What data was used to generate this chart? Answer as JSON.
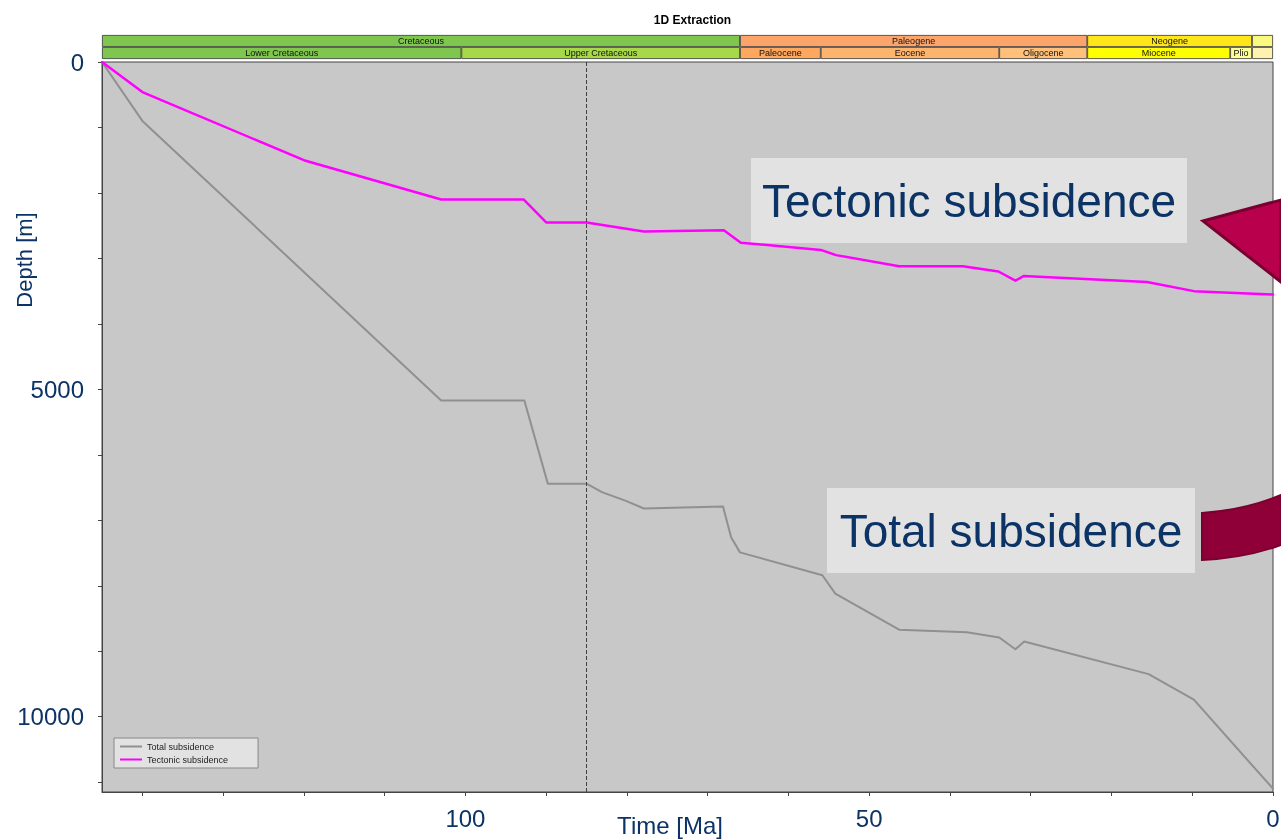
{
  "chart_data": [
    {
      "type": "bar",
      "title": "1D Extraction",
      "orientation": "horizontal",
      "stacked": true,
      "categories": [
        null,
        null
      ],
      "xlim": [
        145,
        0
      ],
      "tick_labels": false,
      "series": [
        {
          "values": [
            2.6,
            2.6
          ],
          "colors": [
            "#f9f97f",
            "#fff2ae"
          ],
          "value_labels": [
            null,
            null
          ]
        },
        {
          "values": [
            20.4,
            2.7
          ],
          "colors": [
            "#ffe619",
            "#ffff99"
          ],
          "value_labels": [
            "Neogene",
            "Plio"
          ]
        },
        {
          "values": [
            43,
            17.7
          ],
          "colors": [
            "#fda46b",
            "#ffff00"
          ],
          "value_labels": [
            "Paleogene",
            "Miocene"
          ]
        },
        {
          "values": [
            79,
            10.9
          ],
          "colors": [
            "#7fc64e",
            "#fec07a"
          ],
          "value_labels": [
            "Cretaceous",
            "Oligocene"
          ]
        },
        {
          "values": [
            null,
            22.1
          ],
          "colors": [
            null,
            "#fdb46c"
          ],
          "value_labels": [
            null,
            "Eocene"
          ]
        },
        {
          "values": [
            null,
            10
          ],
          "colors": [
            null,
            "#fda75f"
          ],
          "value_labels": [
            null,
            "Paleocene"
          ]
        },
        {
          "values": [
            null,
            34.5
          ],
          "colors": [
            null,
            "#a6d84a"
          ],
          "value_labels": [
            null,
            "Upper Cretaceous"
          ]
        },
        {
          "values": [
            null,
            44.5
          ],
          "colors": [
            null,
            "#7fc64e"
          ],
          "value_labels": [
            null,
            "Lower Cretaceous"
          ]
        }
      ]
    },
    {
      "type": "line",
      "xlabel": "Time [Ma]",
      "ylabel": "Depth [m]",
      "xlim": [
        145,
        0
      ],
      "ylim": [
        11150,
        0
      ],
      "xticks": [
        {
          "value": 140,
          "label": null
        },
        {
          "value": 130,
          "label": null
        },
        {
          "value": 120,
          "label": null
        },
        {
          "value": 110,
          "label": null
        },
        100,
        {
          "value": 90,
          "label": null
        },
        {
          "value": 80,
          "label": null
        },
        {
          "value": 70,
          "label": null
        },
        {
          "value": 60,
          "label": null
        },
        50,
        {
          "value": 40,
          "label": null
        },
        {
          "value": 30,
          "label": null
        },
        {
          "value": 20,
          "label": null
        },
        {
          "value": 10,
          "label": null
        },
        0
      ],
      "yticks": [
        0,
        {
          "value": 1000,
          "label": null
        },
        {
          "value": 2000,
          "label": null
        },
        {
          "value": 3000,
          "label": null
        },
        {
          "value": 4000,
          "label": null
        },
        5000,
        {
          "value": 6000,
          "label": null
        },
        {
          "value": 7000,
          "label": null
        },
        {
          "value": 8000,
          "label": null
        },
        {
          "value": 9000,
          "label": null
        },
        10000,
        {
          "value": 11000,
          "label": null
        }
      ],
      "legend": "bottom left",
      "marker": "none",
      "line_style": "solid",
      "series": [
        {
          "name": "Total subsidence",
          "color": "#909090",
          "x": [
            145,
            140,
            103,
            92.7,
            89.8,
            85,
            83.1,
            80.2,
            77.9,
            68.1,
            67.1,
            66,
            55.8,
            54.2,
            46.3,
            37.9,
            33.9,
            31.9,
            30.8,
            15.4,
            9.8,
            0
          ],
          "values": [
            0,
            900,
            5170,
            5170,
            6440,
            6440,
            6570,
            6700,
            6820,
            6790,
            7260,
            7490,
            7840,
            8120,
            8670,
            8710,
            8790,
            8970,
            8850,
            9350,
            9740,
            11100
          ]
        },
        {
          "name": "Tectonic subsidence",
          "color": "#ff00ff",
          "x": [
            145,
            140,
            120,
            103,
            92.8,
            90,
            85,
            77.9,
            68,
            65.9,
            56,
            54.1,
            46.3,
            38.4,
            34,
            31.9,
            30.9,
            15.6,
            9.8,
            0
          ],
          "values": [
            0,
            460,
            1500,
            2100,
            2100,
            2450,
            2450,
            2590,
            2570,
            2760,
            2870,
            2950,
            3120,
            3120,
            3200,
            3340,
            3270,
            3360,
            3500,
            3550
          ]
        }
      ],
      "ref_lines": [
        {
          "axis": "x",
          "value": 85,
          "color": "#404040",
          "line_style": "dashed"
        }
      ],
      "annotations": [
        "Tectonic subsidence",
        "Total subsidence"
      ]
    }
  ]
}
